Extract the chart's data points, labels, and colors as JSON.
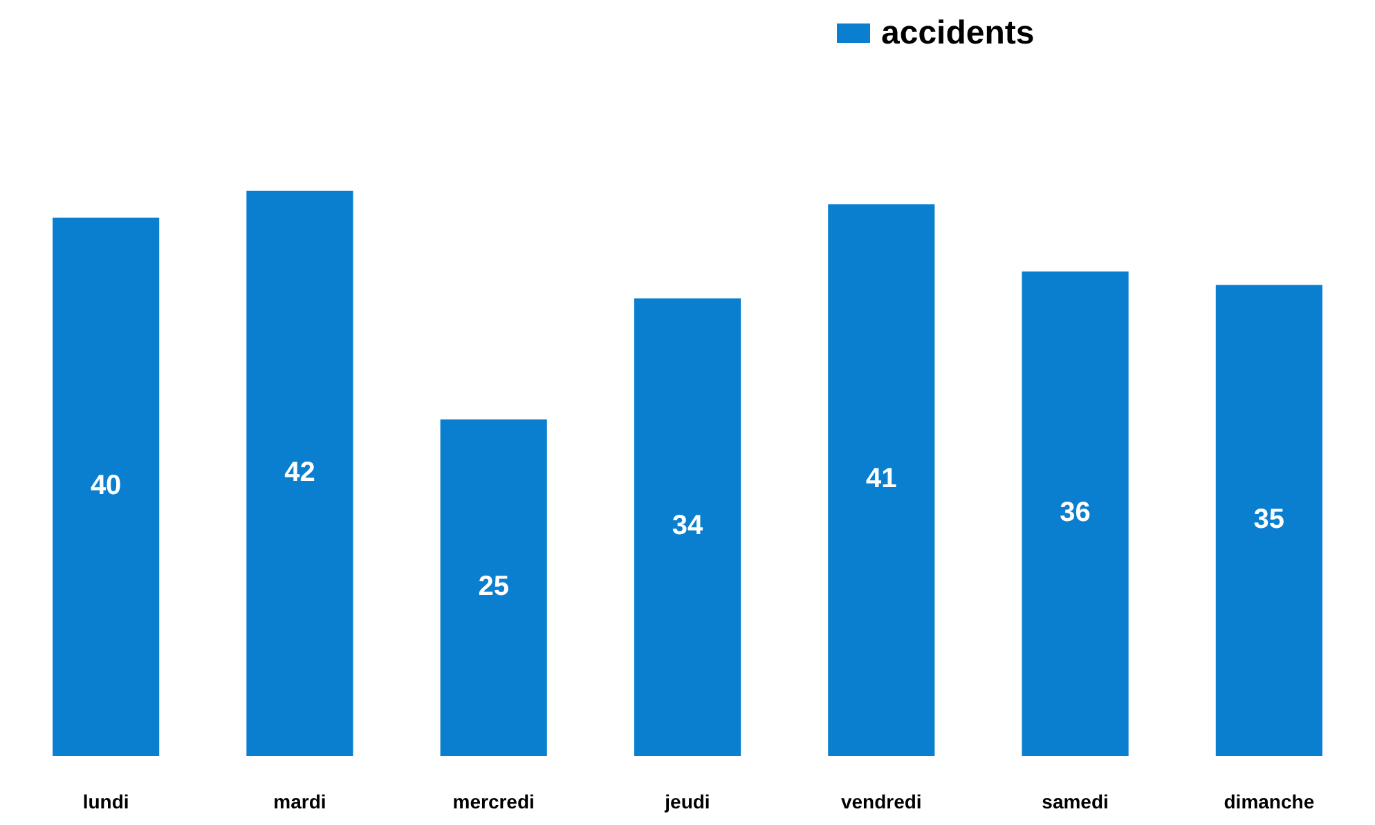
{
  "chart_data": {
    "type": "bar",
    "categories": [
      "lundi",
      "mardi",
      "mercredi",
      "jeudi",
      "vendredi",
      "samedi",
      "dimanche"
    ],
    "series": [
      {
        "name": "accidents",
        "color": "#0a7fd0",
        "values": [
          40,
          42,
          25,
          34,
          41,
          36,
          35
        ]
      }
    ],
    "data_labels": true,
    "legend": "top",
    "tick_labels": "x"
  }
}
